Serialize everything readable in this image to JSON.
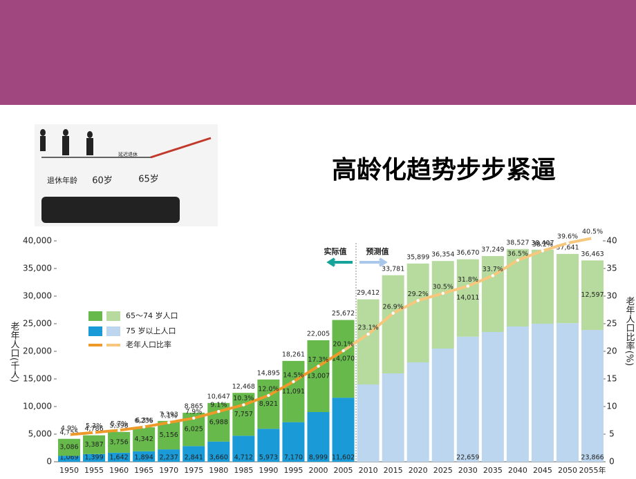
{
  "header": {
    "title": "高龄化趋势步步紧逼"
  },
  "illustration": {
    "retire_label": "退休年龄",
    "age_now": "60岁",
    "age_new": "65岁",
    "delay_label": "延迟退休"
  },
  "chart_data": {
    "type": "bar",
    "stacked": true,
    "ylabel": "老年人口(千人)",
    "y2label": "老年人口比率(%)",
    "actual_label": "实际值",
    "forecast_label": "预测值",
    "categories": [
      "1950",
      "1955",
      "1960",
      "1965",
      "1970",
      "1975",
      "1980",
      "1985",
      "1990",
      "1995",
      "2000",
      "2005",
      "2010",
      "2015",
      "2020",
      "2025",
      "2030",
      "2035",
      "2040",
      "2045",
      "2050",
      "2055年"
    ],
    "ylim": [
      0,
      40000
    ],
    "yticks": [
      0,
      {
        "value": 5000,
        "label": "5,000"
      },
      {
        "value": 10000,
        "label": "10,000"
      },
      {
        "value": 15000,
        "label": "15,000"
      },
      {
        "value": 20000,
        "label": "20,000"
      },
      {
        "value": 25000,
        "label": "25,000"
      },
      {
        "value": 30000,
        "label": "30,000"
      },
      {
        "value": 35000,
        "label": "35,000"
      },
      {
        "value": 40000,
        "label": "40,000"
      }
    ],
    "y2lim": [
      0,
      40
    ],
    "y2ticks": [
      0,
      5,
      10,
      15,
      20,
      25,
      30,
      35,
      40
    ],
    "series": [
      {
        "name": "75 岁以上人口",
        "color": "#1a9ad6",
        "colors": [
          "#1a9ad6",
          "#1a9ad6",
          "#1a9ad6",
          "#1a9ad6",
          "#1a9ad6",
          "#1a9ad6",
          "#1a9ad6",
          "#1a9ad6",
          "#1a9ad6",
          "#1a9ad6",
          "#1a9ad6",
          "#1a9ad6",
          "#bcd6ef",
          "#bcd6ef",
          "#bcd6ef",
          "#bcd6ef",
          "#bcd6ef",
          "#bcd6ef",
          "#bcd6ef",
          "#bcd6ef",
          "#bcd6ef",
          "#bcd6ef"
        ],
        "values": [
          1069,
          1399,
          1642,
          1894,
          2237,
          2841,
          3660,
          4712,
          5973,
          7170,
          8999,
          11602,
          14000,
          16000,
          18000,
          20500,
          22659,
          23500,
          24500,
          25000,
          25100,
          23866
        ],
        "value_labels": [
          "1,069",
          "1,399",
          "1,642",
          "1,894",
          "2,237",
          "2,841",
          "3,660",
          "4,712",
          "5,973",
          "7,170",
          "8,999",
          "11,602",
          null,
          null,
          null,
          null,
          "22,659",
          null,
          null,
          null,
          null,
          "23,866"
        ]
      },
      {
        "name": "65～74 岁人口",
        "color": "#66b94a",
        "colors": [
          "#66b94a",
          "#66b94a",
          "#66b94a",
          "#66b94a",
          "#66b94a",
          "#66b94a",
          "#66b94a",
          "#66b94a",
          "#66b94a",
          "#66b94a",
          "#66b94a",
          "#66b94a",
          "#b7db9e",
          "#b7db9e",
          "#b7db9e",
          "#b7db9e",
          "#b7db9e",
          "#b7db9e",
          "#b7db9e",
          "#b7db9e",
          "#b7db9e",
          "#b7db9e"
        ],
        "values": [
          3086,
          3387,
          3756,
          4342,
          5156,
          6025,
          6988,
          7757,
          8921,
          11091,
          13007,
          14070,
          15412,
          17781,
          17899,
          15854,
          14011,
          13749,
          14027,
          13407,
          12541,
          12597
        ],
        "value_labels": [
          "3,086",
          "3,387",
          "3,756",
          "4,342",
          "5,156",
          "6,025",
          "6,988",
          "7,757",
          "8,921",
          "11,091",
          "13,007",
          "14,070",
          null,
          null,
          null,
          null,
          "14,011",
          null,
          null,
          null,
          null,
          "12,597"
        ]
      },
      {
        "name": "老年人口比率",
        "type": "line",
        "axis": "y2",
        "color": "#ee9a2a",
        "forecast_color": "#f6c77c",
        "values": [
          4.9,
          5.3,
          5.7,
          6.3,
          7.1,
          7.9,
          9.1,
          10.3,
          12.0,
          14.5,
          17.3,
          20.1,
          23.1,
          26.9,
          29.2,
          30.5,
          31.8,
          33.7,
          36.5,
          38.2,
          39.6,
          40.5
        ],
        "value_labels": [
          "4.9%",
          "5.3%",
          "5.7%",
          "6.3%",
          "7.1%",
          "7.9%",
          "9.1%",
          "10.3%",
          "12.0%",
          "14.5%",
          "17.3%",
          "20.1%",
          "23.1%",
          "26.9%",
          "29.2%",
          "30.5%",
          "31.8%",
          "33.7%",
          "36.5%",
          "38.2%",
          "39.6%",
          "40.5%"
        ]
      }
    ],
    "totals": [
      4155,
      4786,
      5398,
      6236,
      7393,
      8865,
      10647,
      12468,
      14895,
      18261,
      22005,
      25672,
      29412,
      33781,
      35899,
      36354,
      36670,
      37249,
      38527,
      38407,
      37641,
      36463
    ],
    "total_labels": [
      "4,155",
      "4,786",
      "5,398",
      "6,236",
      "7,393",
      "8,865",
      "10,647",
      "12,468",
      "14,895",
      "18,261",
      "22,005",
      "25,672",
      "29,412",
      "33,781",
      "35,899",
      "36,354",
      "36,670",
      "37,249",
      "38,527",
      "38,407",
      "37,641",
      "36,463"
    ]
  }
}
